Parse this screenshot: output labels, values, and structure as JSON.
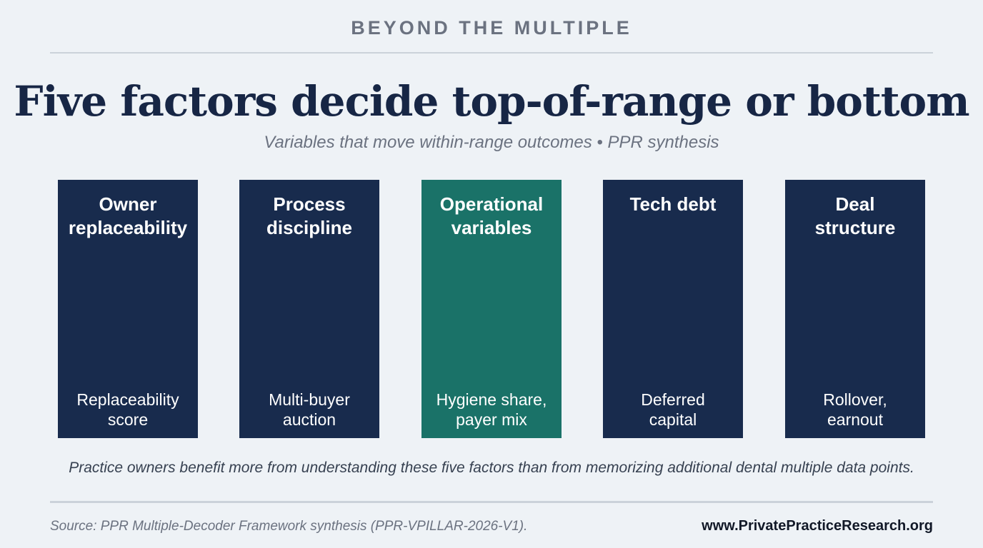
{
  "header": {
    "eyebrow": "BEYOND THE MULTIPLE",
    "title": "Five factors decide top-of-range or bottom",
    "subtitle": "Variables that move within-range outcomes • PPR synthesis"
  },
  "colors": {
    "card_default": "#182b4d",
    "card_highlight": "#1a7268",
    "background": "#eef2f6"
  },
  "factors": [
    {
      "title": "Owner\nreplaceability",
      "detail": "Replaceability\nscore",
      "highlight": false
    },
    {
      "title": "Process\ndiscipline",
      "detail": "Multi-buyer\nauction",
      "highlight": false
    },
    {
      "title": "Operational\nvariables",
      "detail": "Hygiene share,\npayer mix",
      "highlight": true
    },
    {
      "title": "Tech debt",
      "detail": "Deferred\ncapital",
      "highlight": false
    },
    {
      "title": "Deal\nstructure",
      "detail": "Rollover,\nearnout",
      "highlight": false
    }
  ],
  "footer": {
    "note": "Practice owners benefit more from understanding these five factors than from memorizing additional dental multiple data points.",
    "source": "Source: PPR Multiple-Decoder Framework synthesis (PPR-VPILLAR-2026-V1).",
    "website": "www.PrivatePracticeResearch.org"
  }
}
